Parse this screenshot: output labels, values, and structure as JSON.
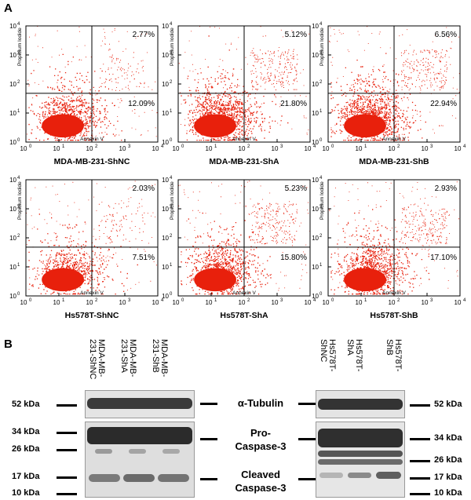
{
  "figure": {
    "panel_a_letter": "A",
    "panel_b_letter": "B"
  },
  "flow": {
    "y_axis_label": "Propidium Iodide",
    "x_axis_label": "Annexin V",
    "tick_labels": [
      "10",
      "10",
      "10",
      "10",
      "10"
    ],
    "tick_exponents": [
      "0",
      "1",
      "2",
      "3",
      "4"
    ],
    "point_color": "#e8200c",
    "plots": [
      {
        "caption": "MDA-MB-231-ShNC",
        "upper_right": "2.77%",
        "lower_right": "12.09%"
      },
      {
        "caption": "MDA-MB-231-ShA",
        "upper_right": "5.12%",
        "lower_right": "21.80%"
      },
      {
        "caption": "MDA-MB-231-ShB",
        "upper_right": "6.56%",
        "lower_right": "22.94%"
      },
      {
        "caption": "Hs578T-ShNC",
        "upper_right": "2.03%",
        "lower_right": "7.51%"
      },
      {
        "caption": "Hs578T-ShA",
        "upper_right": "5.23%",
        "lower_right": "15.80%"
      },
      {
        "caption": "Hs578T-ShB",
        "upper_right": "2.93%",
        "lower_right": "17.10%"
      }
    ]
  },
  "blot": {
    "left_lanes": [
      "MDA-MB-\n231-ShNC",
      "MDA-MB-\n231-ShA",
      "MDA-MB-\n231-ShB"
    ],
    "right_lanes": [
      "Hs578T-\nShNC",
      "Hs578T-\nShA",
      "Hs578T-\nShB"
    ],
    "proteins": {
      "tubulin": "α-Tubulin",
      "pro_caspase": "Pro-\nCaspase-3",
      "cleaved_caspase": "Cleaved\nCaspase-3"
    },
    "markers": {
      "kda52": "52 kDa",
      "kda34": "34 kDa",
      "kda26": "26 kDa",
      "kda17": "17 kDa",
      "kda10": "10 kDa"
    }
  }
}
